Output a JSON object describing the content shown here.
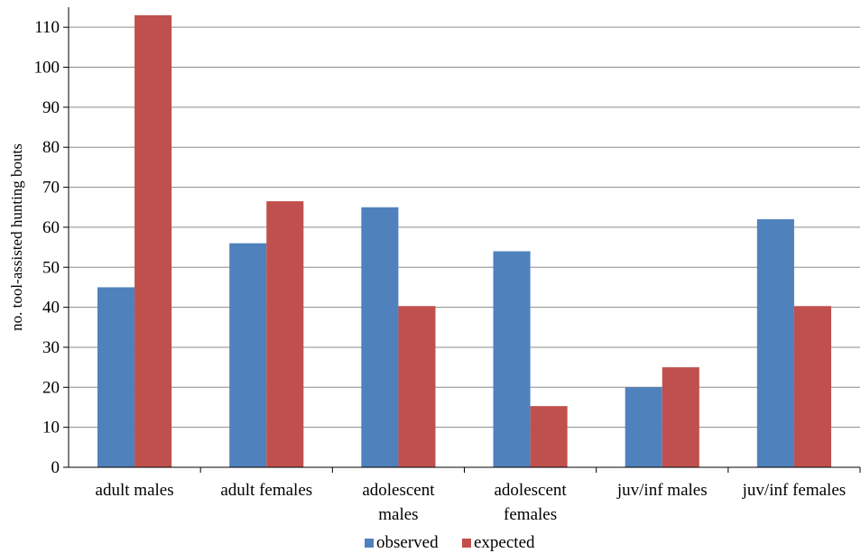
{
  "chart_data": {
    "type": "bar",
    "title": "",
    "xlabel": "",
    "ylabel": "no. tool-assisted hunting bouts",
    "ylim": [
      0,
      115
    ],
    "yticks": [
      0,
      10,
      20,
      30,
      40,
      50,
      60,
      70,
      80,
      90,
      100,
      110
    ],
    "grid": true,
    "legend_position": "bottom",
    "categories": [
      [
        "adult males"
      ],
      [
        "adult females"
      ],
      [
        "adolescent",
        "males"
      ],
      [
        "adolescent",
        "females"
      ],
      [
        "juv/inf males"
      ],
      [
        "juv/inf females"
      ]
    ],
    "series": [
      {
        "name": "observed",
        "color": "#4f81bd",
        "values": [
          45,
          56,
          65,
          54,
          20,
          62
        ]
      },
      {
        "name": "expected",
        "color": "#c0504d",
        "values": [
          113,
          66.5,
          40.3,
          15.3,
          25,
          40.3
        ]
      }
    ]
  }
}
